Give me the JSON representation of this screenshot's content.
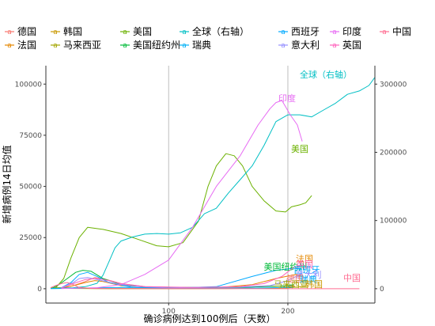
{
  "chart_data": {
    "type": "line",
    "xlabel": "确诊病例达到100例后（天数）",
    "ylabel": "新增病例14日均值",
    "xlim": [
      -3,
      273
    ],
    "ylim_left": [
      -7000,
      109000
    ],
    "ylim_right": [
      -21000,
      327000
    ],
    "xticks": [
      100,
      200
    ],
    "yticks_left": [
      0,
      25000,
      50000,
      75000,
      100000
    ],
    "yticks_right": [
      0,
      100000,
      200000,
      300000
    ],
    "grid": "vertical major lines only",
    "legend_position": "top",
    "series": [
      {
        "name": "德国",
        "color": "#F8766D",
        "axis": "left",
        "points": [
          [
            10,
            300
          ],
          [
            20,
            1500
          ],
          [
            30,
            3500
          ],
          [
            38,
            5500
          ],
          [
            48,
            4500
          ],
          [
            60,
            2500
          ],
          [
            80,
            1000
          ],
          [
            120,
            500
          ],
          [
            160,
            600
          ],
          [
            185,
            1200
          ],
          [
            205,
            1500
          ]
        ]
      },
      {
        "name": "法国",
        "color": "#E58700",
        "axis": "left",
        "points": [
          [
            10,
            300
          ],
          [
            20,
            1500
          ],
          [
            30,
            3000
          ],
          [
            38,
            4000
          ],
          [
            45,
            3500
          ],
          [
            60,
            1500
          ],
          [
            90,
            700
          ],
          [
            140,
            500
          ],
          [
            170,
            2000
          ],
          [
            190,
            5000
          ],
          [
            207,
            7000
          ],
          [
            212,
            6000
          ]
        ]
      },
      {
        "name": "韩国",
        "color": "#C99800",
        "axis": "left",
        "points": [
          [
            1,
            300
          ],
          [
            5,
            600
          ],
          [
            10,
            500
          ],
          [
            20,
            200
          ],
          [
            50,
            80
          ],
          [
            100,
            40
          ],
          [
            150,
            60
          ],
          [
            180,
            300
          ],
          [
            200,
            400
          ],
          [
            215,
            1300
          ]
        ]
      },
      {
        "name": "马来西亚",
        "color": "#A3A500",
        "axis": "left",
        "points": [
          [
            1,
            100
          ],
          [
            15,
            150
          ],
          [
            40,
            80
          ],
          [
            100,
            20
          ],
          [
            180,
            200
          ],
          [
            200,
            800
          ],
          [
            206,
            1200
          ]
        ]
      },
      {
        "name": "美国",
        "color": "#6BB100",
        "axis": "left",
        "points": [
          [
            5,
            300
          ],
          [
            12,
            5000
          ],
          [
            18,
            15000
          ],
          [
            25,
            25000
          ],
          [
            32,
            30000
          ],
          [
            45,
            29000
          ],
          [
            60,
            27000
          ],
          [
            75,
            24000
          ],
          [
            90,
            21000
          ],
          [
            100,
            20500
          ],
          [
            112,
            22500
          ],
          [
            125,
            33000
          ],
          [
            133,
            50000
          ],
          [
            140,
            60000
          ],
          [
            148,
            66000
          ],
          [
            155,
            65000
          ],
          [
            162,
            60000
          ],
          [
            170,
            50000
          ],
          [
            180,
            43000
          ],
          [
            190,
            38000
          ],
          [
            198,
            37500
          ],
          [
            203,
            40000
          ],
          [
            210,
            41000
          ],
          [
            215,
            42000
          ],
          [
            220,
            45500
          ]
        ]
      },
      {
        "name": "美国纽约州",
        "color": "#00BA38",
        "axis": "left",
        "points": [
          [
            2,
            200
          ],
          [
            8,
            2000
          ],
          [
            15,
            5000
          ],
          [
            22,
            8000
          ],
          [
            28,
            9000
          ],
          [
            35,
            8500
          ],
          [
            45,
            5000
          ],
          [
            60,
            2000
          ],
          [
            80,
            800
          ],
          [
            120,
            600
          ],
          [
            160,
            700
          ],
          [
            190,
            1200
          ],
          [
            200,
            1500
          ],
          [
            205,
            2000
          ]
        ]
      },
      {
        "name": "全球（右轴）",
        "color": "#00BFC4",
        "axis": "right",
        "points": [
          [
            1,
            500
          ],
          [
            10,
            1000
          ],
          [
            20,
            1500
          ],
          [
            30,
            3000
          ],
          [
            40,
            8000
          ],
          [
            45,
            20000
          ],
          [
            50,
            40000
          ],
          [
            55,
            60000
          ],
          [
            60,
            70000
          ],
          [
            70,
            76000
          ],
          [
            80,
            80000
          ],
          [
            90,
            81000
          ],
          [
            100,
            80000
          ],
          [
            110,
            82000
          ],
          [
            120,
            90000
          ],
          [
            130,
            110000
          ],
          [
            140,
            118000
          ],
          [
            150,
            140000
          ],
          [
            160,
            160000
          ],
          [
            170,
            180000
          ],
          [
            180,
            210000
          ],
          [
            190,
            245000
          ],
          [
            200,
            255000
          ],
          [
            210,
            255000
          ],
          [
            220,
            252000
          ],
          [
            230,
            262000
          ],
          [
            240,
            272000
          ],
          [
            250,
            285000
          ],
          [
            260,
            290000
          ],
          [
            268,
            298000
          ],
          [
            273,
            310000
          ]
        ]
      },
      {
        "name": "瑞典",
        "color": "#00B0F6",
        "axis": "left",
        "points": [
          [
            1,
            50
          ],
          [
            30,
            300
          ],
          [
            60,
            600
          ],
          [
            100,
            400
          ],
          [
            150,
            200
          ],
          [
            180,
            400
          ],
          [
            200,
            600
          ],
          [
            205,
            700
          ]
        ]
      },
      {
        "name": "西班牙",
        "color": "#00A9FF",
        "axis": "left",
        "points": [
          [
            10,
            500
          ],
          [
            18,
            3000
          ],
          [
            25,
            7000
          ],
          [
            32,
            8000
          ],
          [
            40,
            6000
          ],
          [
            50,
            3000
          ],
          [
            70,
            600
          ],
          [
            100,
            300
          ],
          [
            140,
            1000
          ],
          [
            170,
            6000
          ],
          [
            190,
            9000
          ],
          [
            205,
            10000
          ],
          [
            212,
            9500
          ]
        ]
      },
      {
        "name": "意大利",
        "color": "#9590FF",
        "axis": "left",
        "points": [
          [
            10,
            500
          ],
          [
            20,
            3000
          ],
          [
            25,
            5000
          ],
          [
            32,
            5500
          ],
          [
            40,
            4500
          ],
          [
            55,
            2500
          ],
          [
            70,
            1200
          ],
          [
            100,
            400
          ],
          [
            160,
            800
          ],
          [
            185,
            1500
          ],
          [
            200,
            4000
          ],
          [
            212,
            7500
          ]
        ]
      },
      {
        "name": "印度",
        "color": "#E76BF3",
        "axis": "left",
        "points": [
          [
            10,
            100
          ],
          [
            40,
            500
          ],
          [
            60,
            2000
          ],
          [
            80,
            7000
          ],
          [
            100,
            14000
          ],
          [
            120,
            30000
          ],
          [
            140,
            50000
          ],
          [
            160,
            65000
          ],
          [
            175,
            80000
          ],
          [
            185,
            88000
          ],
          [
            190,
            91000
          ],
          [
            195,
            92000
          ],
          [
            198,
            89000
          ],
          [
            202,
            85000
          ],
          [
            208,
            80000
          ],
          [
            212,
            72000
          ]
        ]
      },
      {
        "name": "英国",
        "color": "#FF62BC",
        "axis": "left",
        "points": [
          [
            10,
            300
          ],
          [
            20,
            2500
          ],
          [
            30,
            4500
          ],
          [
            40,
            5000
          ],
          [
            50,
            4000
          ],
          [
            60,
            2500
          ],
          [
            80,
            1000
          ],
          [
            120,
            600
          ],
          [
            160,
            1000
          ],
          [
            180,
            2500
          ],
          [
            195,
            6000
          ],
          [
            205,
            10500
          ],
          [
            212,
            11500
          ]
        ]
      },
      {
        "name": "中国",
        "color": "#FF6C91",
        "axis": "left",
        "points": [
          [
            1,
            500
          ],
          [
            5,
            1500
          ],
          [
            10,
            2500
          ],
          [
            15,
            3000
          ],
          [
            20,
            2000
          ],
          [
            25,
            600
          ],
          [
            35,
            150
          ],
          [
            60,
            40
          ],
          [
            100,
            20
          ],
          [
            150,
            20
          ],
          [
            200,
            15
          ],
          [
            260,
            15
          ]
        ]
      }
    ],
    "labels": [
      {
        "text": "全球（右轴）",
        "color": "#00BFC4"
      },
      {
        "text": "印度",
        "color": "#E76BF3"
      },
      {
        "text": "美国",
        "color": "#6BB100"
      },
      {
        "text": "法国",
        "color": "#E58700"
      },
      {
        "text": "美国纽约州",
        "color": "#00BA38"
      },
      {
        "text": "英国",
        "color": "#FF62BC"
      },
      {
        "text": "西班牙",
        "color": "#00A9FF"
      },
      {
        "text": "意大利",
        "color": "#9590FF"
      },
      {
        "text": "德国",
        "color": "#F8766D"
      },
      {
        "text": "瑞典",
        "color": "#00B0F6"
      },
      {
        "text": "马来西亚",
        "color": "#A3A500"
      },
      {
        "text": "韩国",
        "color": "#C99800"
      },
      {
        "text": "中国",
        "color": "#FF6C91"
      }
    ]
  }
}
